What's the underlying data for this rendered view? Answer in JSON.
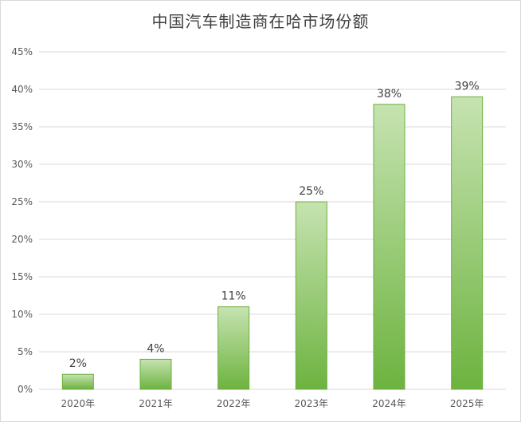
{
  "chart_data": {
    "type": "bar",
    "title": "中国汽车制造商在哈市场份额",
    "xlabel": "",
    "ylabel": "",
    "categories": [
      "2020年",
      "2021年",
      "2022年",
      "2023年",
      "2024年",
      "2025年"
    ],
    "values": [
      2,
      4,
      11,
      25,
      38,
      39
    ],
    "value_labels": [
      "2%",
      "4%",
      "11%",
      "25%",
      "38%",
      "39%"
    ],
    "ylim": [
      0,
      45
    ],
    "yticks": [
      0,
      5,
      10,
      15,
      20,
      25,
      30,
      35,
      40,
      45
    ],
    "ytick_labels": [
      "0%",
      "5%",
      "10%",
      "15%",
      "20%",
      "25%",
      "30%",
      "35%",
      "40%",
      "45%"
    ],
    "grid": true,
    "legend": "none",
    "colors": {
      "bar_top": "#c6e3b1",
      "bar_bottom": "#6db33f",
      "bar_border": "#6aaf3c",
      "grid": "#d9d9d9"
    }
  }
}
